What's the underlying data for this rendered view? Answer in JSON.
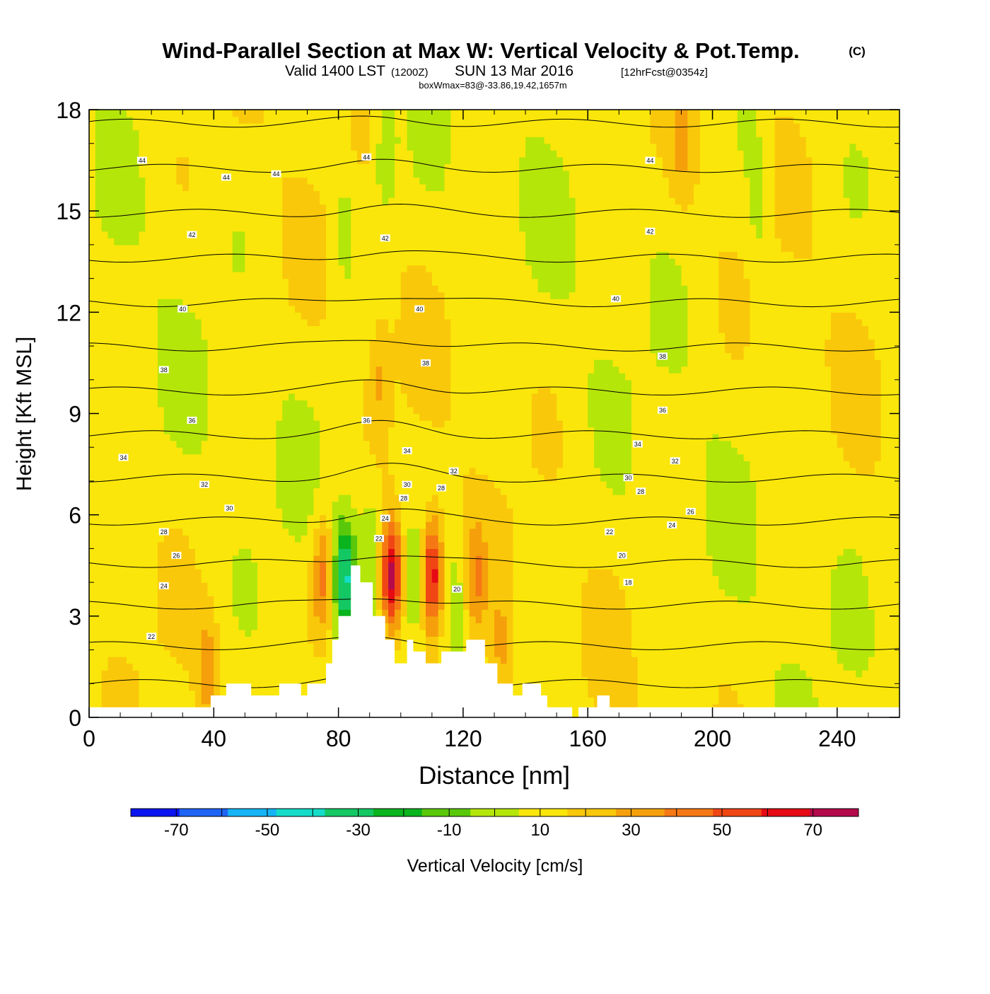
{
  "chart_data": {
    "type": "heatmap",
    "title": "Wind-Parallel Section at Max W: Vertical Velocity & Pot.Temp.",
    "title_mark": "(C)",
    "subtitle": {
      "valid_prefix": "Valid 1400 LST",
      "utc": "(1200Z)",
      "date": "SUN 13 Mar 2016",
      "forecast": "[12hrFcst@0354z]"
    },
    "box_info": "boxWmax=83@-33.86,19.42,1657m",
    "xlabel": "Distance [nm]",
    "ylabel": "Height [Kft MSL]",
    "xlim": [
      0,
      260
    ],
    "ylim": [
      0,
      18
    ],
    "x_ticks": [
      0,
      40,
      80,
      120,
      160,
      200,
      240
    ],
    "y_ticks": [
      0,
      3,
      6,
      9,
      12,
      15,
      18
    ],
    "colorbar": {
      "label": "Vertical Velocity [cm/s]",
      "levels": [
        -80,
        -70,
        -60,
        -50,
        -40,
        -30,
        -20,
        -10,
        0,
        10,
        20,
        30,
        40,
        50,
        60,
        70,
        80
      ],
      "tick_labels": [
        -70,
        -50,
        -30,
        -10,
        10,
        30,
        50,
        70
      ],
      "colors": [
        "#0a14f0",
        "#1e64f5",
        "#14b4f5",
        "#14dcc8",
        "#14c864",
        "#0ab41e",
        "#5ac80a",
        "#b4e60a",
        "#fae60a",
        "#fac80a",
        "#f5a00a",
        "#f57814",
        "#f04614",
        "#e60a14",
        "#b40a4b"
      ]
    },
    "base_value": 5,
    "updrafts": [
      {
        "x": 75,
        "z": 4.2,
        "w": 32
      },
      {
        "x": 97,
        "z": 4.2,
        "w": 60
      },
      {
        "x": 110,
        "z": 4.2,
        "w": 55
      },
      {
        "x": 124,
        "z": 4.0,
        "w": 22
      },
      {
        "x": 93,
        "z": 10.0,
        "w": 15
      },
      {
        "x": 190,
        "z": 16.8,
        "w": 12
      },
      {
        "x": 38,
        "z": 1.5,
        "w": 18
      },
      {
        "x": 132,
        "z": 2.0,
        "w": 15
      }
    ],
    "downdrafts": [
      {
        "x": 82,
        "z": 4.2,
        "w": -45
      },
      {
        "x": 90,
        "z": 5.2,
        "w": -15
      },
      {
        "x": 118,
        "z": 3.5,
        "w": -12
      },
      {
        "x": 105,
        "z": 4.0,
        "w": -10
      },
      {
        "x": 95,
        "z": 16.5,
        "w": -15
      },
      {
        "x": 82,
        "z": 14.5,
        "w": -12
      },
      {
        "x": 215,
        "z": 15.2,
        "w": -12
      },
      {
        "x": 212,
        "z": 17.8,
        "w": -10
      }
    ],
    "theta_contours": {
      "levels": [
        18,
        20,
        22,
        24,
        26,
        28,
        30,
        32,
        34,
        36,
        38,
        40,
        42,
        44
      ],
      "labels": [
        {
          "x": 20,
          "z": 2.4,
          "text": "22"
        },
        {
          "x": 24,
          "z": 3.9,
          "text": "24"
        },
        {
          "x": 28,
          "z": 4.8,
          "text": "26"
        },
        {
          "x": 24,
          "z": 5.5,
          "text": "28"
        },
        {
          "x": 45,
          "z": 6.2,
          "text": "30"
        },
        {
          "x": 37,
          "z": 6.9,
          "text": "32"
        },
        {
          "x": 11,
          "z": 7.7,
          "text": "34"
        },
        {
          "x": 33,
          "z": 8.8,
          "text": "36"
        },
        {
          "x": 24,
          "z": 10.3,
          "text": "38"
        },
        {
          "x": 30,
          "z": 12.1,
          "text": "40"
        },
        {
          "x": 33,
          "z": 14.3,
          "text": "42"
        },
        {
          "x": 17,
          "z": 16.5,
          "text": "44"
        },
        {
          "x": 44,
          "z": 16.0,
          "text": "44"
        },
        {
          "x": 60,
          "z": 16.1,
          "text": "44"
        },
        {
          "x": 89,
          "z": 16.6,
          "text": "44"
        },
        {
          "x": 95,
          "z": 14.2,
          "text": "42"
        },
        {
          "x": 106,
          "z": 12.1,
          "text": "40"
        },
        {
          "x": 108,
          "z": 10.5,
          "text": "38"
        },
        {
          "x": 89,
          "z": 8.8,
          "text": "36"
        },
        {
          "x": 102,
          "z": 7.9,
          "text": "34"
        },
        {
          "x": 117,
          "z": 7.3,
          "text": "32"
        },
        {
          "x": 102,
          "z": 6.9,
          "text": "30"
        },
        {
          "x": 101,
          "z": 6.5,
          "text": "28"
        },
        {
          "x": 113,
          "z": 6.8,
          "text": "28"
        },
        {
          "x": 95,
          "z": 5.9,
          "text": "24"
        },
        {
          "x": 93,
          "z": 5.3,
          "text": "22"
        },
        {
          "x": 118,
          "z": 3.8,
          "text": "20"
        },
        {
          "x": 180,
          "z": 16.5,
          "text": "44"
        },
        {
          "x": 180,
          "z": 14.4,
          "text": "42"
        },
        {
          "x": 169,
          "z": 12.4,
          "text": "40"
        },
        {
          "x": 184,
          "z": 10.7,
          "text": "38"
        },
        {
          "x": 184,
          "z": 9.1,
          "text": "36"
        },
        {
          "x": 176,
          "z": 8.1,
          "text": "34"
        },
        {
          "x": 188,
          "z": 7.6,
          "text": "32"
        },
        {
          "x": 173,
          "z": 7.1,
          "text": "30"
        },
        {
          "x": 177,
          "z": 6.7,
          "text": "28"
        },
        {
          "x": 193,
          "z": 6.1,
          "text": "26"
        },
        {
          "x": 187,
          "z": 5.7,
          "text": "24"
        },
        {
          "x": 167,
          "z": 5.5,
          "text": "22"
        },
        {
          "x": 171,
          "z": 4.8,
          "text": "20"
        },
        {
          "x": 173,
          "z": 4.0,
          "text": "18"
        }
      ]
    },
    "terrain_profile": {
      "x": [
        0,
        39,
        39,
        44,
        44,
        52,
        52,
        61,
        61,
        68,
        68,
        70,
        70,
        76,
        76,
        78,
        78,
        80,
        80,
        84,
        84,
        87,
        87,
        91,
        91,
        95,
        95,
        98,
        98,
        102,
        102,
        104,
        104,
        108,
        108,
        113,
        113,
        121,
        121,
        127,
        127,
        131,
        131,
        136,
        136,
        139,
        139,
        145,
        145,
        147,
        147,
        155,
        155,
        157,
        157,
        163,
        163,
        167,
        167,
        260
      ],
      "z": [
        0.3,
        0.3,
        0.65,
        0.65,
        1.0,
        1.0,
        0.65,
        0.65,
        1.0,
        1.0,
        0.65,
        0.65,
        1.0,
        1.0,
        1.6,
        1.6,
        2.3,
        2.3,
        3.0,
        3.0,
        4.5,
        4.5,
        4.0,
        4.0,
        3.0,
        3.0,
        2.3,
        2.3,
        1.6,
        1.6,
        2.3,
        2.3,
        1.95,
        1.95,
        1.6,
        1.6,
        1.95,
        1.95,
        2.3,
        2.3,
        1.6,
        1.6,
        1.0,
        1.0,
        0.65,
        0.65,
        1.0,
        1.0,
        0.65,
        0.65,
        0.3,
        0.3,
        0.0,
        0.0,
        0.3,
        0.3,
        0.65,
        0.65,
        0.3,
        0.3
      ]
    }
  }
}
